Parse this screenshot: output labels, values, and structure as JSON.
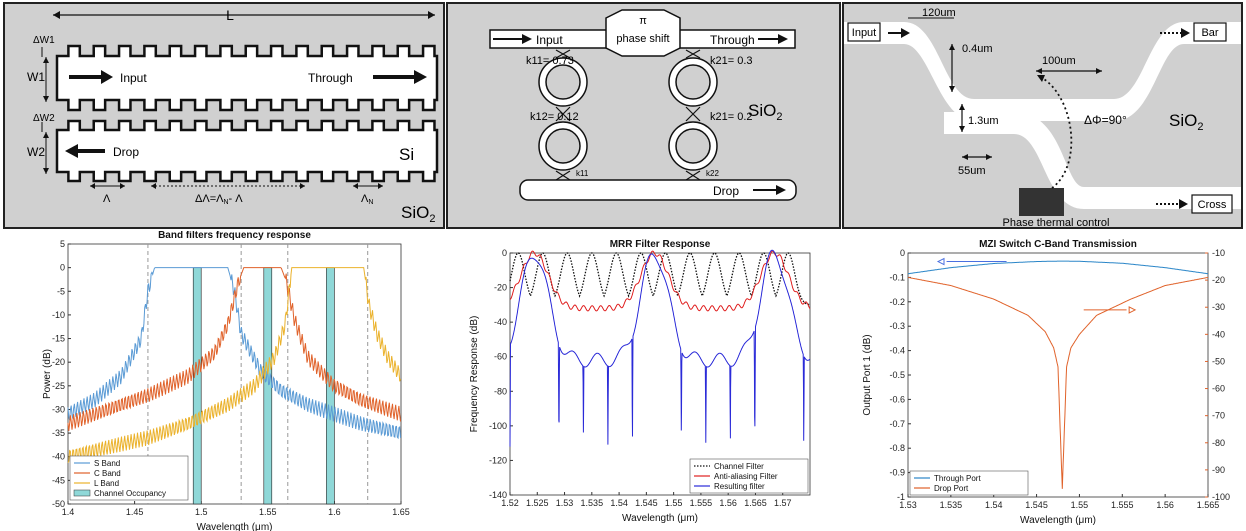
{
  "panel_a": {
    "length": "L",
    "dw1": "ΔW1",
    "w1": "W1",
    "dw2": "ΔW2",
    "w2": "W2",
    "input": "Input",
    "through": "Through",
    "drop": "Drop",
    "si": "Si",
    "lambda": "Λ",
    "dlambda": "ΔΛ=Λ",
    "dlambda_sub": "N",
    "dlambda_rest": "- Λ",
    "lambda_n": "Λ",
    "lambda_n_sub": "N",
    "sio2": "SiO",
    "sio2_sub": "2"
  },
  "panel_b": {
    "pi": "π",
    "phase_shift": "phase shift",
    "input": "Input",
    "through": "Through",
    "drop": "Drop",
    "k11": "k11= 0.73",
    "k12": "k12= 0.12",
    "k21": "k21= 0.3",
    "k22": "k21= 0.2",
    "k_bottom_left": "k11",
    "k_bottom_right": "k22",
    "sio2": "SiO",
    "sio2_sub": "2"
  },
  "panel_c": {
    "input": "Input",
    "bar": "Bar",
    "cross": "Cross",
    "d120": "120um",
    "d04": "0.4um",
    "d100": "100um",
    "d13": "1.3um",
    "d55": "55um",
    "phase": "ΔΦ=90°",
    "thermal": "Phase thermal control",
    "sio2": "SiO",
    "sio2_sub": "2"
  },
  "chart_data": [
    {
      "type": "line",
      "title": "Band filters frequency response",
      "xlabel": "Wavelength (μm)",
      "ylabel": "Power (dB)",
      "xlim": [
        1.4,
        1.65
      ],
      "ylim": [
        -50,
        5
      ],
      "xticks": [
        "1.4",
        "1.45",
        "1.5",
        "1.55",
        "1.6",
        "1.65"
      ],
      "yticks": [
        "5",
        "0",
        "-5",
        "-10",
        "-15",
        "-20",
        "-25",
        "-30",
        "-35",
        "-40",
        "-45",
        "-50"
      ],
      "legend": [
        "S Band",
        "C Band",
        "L Band",
        "Channel Occupancy"
      ],
      "legend_position": "bottom-left",
      "series": [
        {
          "name": "S Band",
          "color": "#5b9bd5",
          "x": [
            1.4,
            1.42,
            1.44,
            1.455,
            1.46,
            1.465,
            1.52,
            1.525,
            1.53,
            1.545,
            1.56,
            1.58,
            1.6,
            1.62,
            1.65
          ],
          "y": [
            -31,
            -28,
            -23,
            -15,
            -5,
            0,
            0,
            -5,
            -14,
            -22,
            -26,
            -29,
            -31,
            -33,
            -35
          ]
        },
        {
          "name": "C Band",
          "color": "#e0622a",
          "x": [
            1.4,
            1.43,
            1.46,
            1.49,
            1.51,
            1.52,
            1.528,
            1.532,
            1.56,
            1.564,
            1.57,
            1.58,
            1.6,
            1.62,
            1.65
          ],
          "y": [
            -33,
            -30,
            -27,
            -23,
            -18,
            -12,
            -3,
            0,
            0,
            -3,
            -11,
            -19,
            -25,
            -28,
            -31
          ]
        },
        {
          "name": "L Band",
          "color": "#ebb22c",
          "x": [
            1.4,
            1.43,
            1.46,
            1.49,
            1.52,
            1.54,
            1.555,
            1.563,
            1.568,
            1.622,
            1.626,
            1.632,
            1.64,
            1.65
          ],
          "y": [
            -40,
            -38,
            -36,
            -33,
            -29,
            -25,
            -19,
            -12,
            0,
            0,
            -8,
            -14,
            -19,
            -23
          ]
        }
      ],
      "dashed_lines_x": [
        1.46,
        1.53,
        1.565,
        1.625
      ],
      "channel_occupancy": [
        [
          1.494,
          1.5
        ],
        [
          1.547,
          1.553
        ],
        [
          1.594,
          1.6
        ]
      ]
    },
    {
      "type": "line",
      "title": "MRR Filter Response",
      "xlabel": "Wavelength (μm)",
      "ylabel": "Frequency Response (dB)",
      "xlim": [
        1.52,
        1.575
      ],
      "ylim": [
        -140,
        0
      ],
      "xticks": [
        "1.52",
        "1.525",
        "1.53",
        "1.535",
        "1.54",
        "1.545",
        "1.55",
        "1.555",
        "1.56",
        "1.565",
        "1.57"
      ],
      "yticks": [
        "0",
        "-20",
        "-40",
        "-60",
        "-80",
        "-100",
        "-120",
        "-140"
      ],
      "legend": [
        "Channel Filter",
        "Anti-aliasing Filter",
        "Resulting filter"
      ],
      "legend_position": "bottom-right",
      "series": [
        {
          "name": "Channel Filter",
          "color": "#111111",
          "style": "dotted",
          "peaks_x": [
            1.5215,
            1.526,
            1.5305,
            1.535,
            1.5395,
            1.544,
            1.5485,
            1.553,
            1.5575,
            1.562,
            1.5665,
            1.571
          ],
          "floor": -30
        },
        {
          "name": "Anti-aliasing Filter",
          "color": "#e02020",
          "peaks_x": [
            1.5245,
            1.5465,
            1.5685
          ],
          "floor": -32
        },
        {
          "name": "Resulting filter",
          "color": "#2a2ad8",
          "peaks_x": [
            1.5245,
            1.5465,
            1.5685
          ],
          "floor": -62
        }
      ]
    },
    {
      "type": "line",
      "title": "MZI Switch C-Band Transmission",
      "xlabel": "Wavelength (μm)",
      "ylabel": "Output Port 1 (dB)",
      "y2label": "",
      "xlim": [
        1.53,
        1.565
      ],
      "ylim": [
        -1,
        0
      ],
      "y2lim": [
        -100,
        -10
      ],
      "xticks": [
        "1.53",
        "1.535",
        "1.54",
        "1.545",
        "1.55",
        "1.555",
        "1.56",
        "1.565"
      ],
      "yticks": [
        "0",
        "-0.1",
        "-0.2",
        "-0.3",
        "-0.4",
        "-0.5",
        "-0.6",
        "-0.7",
        "-0.8",
        "-0.9",
        "-1"
      ],
      "y2ticks": [
        "-10",
        "-20",
        "-30",
        "-40",
        "-50",
        "-60",
        "-70",
        "-80",
        "-90",
        "-100"
      ],
      "legend": [
        "Through Port",
        "Drop Port"
      ],
      "legend_position": "bottom-left",
      "series": [
        {
          "name": "Through Port",
          "color": "#2b86c8",
          "x": [
            1.53,
            1.535,
            1.54,
            1.545,
            1.548,
            1.55,
            1.555,
            1.56,
            1.565
          ],
          "y": [
            -0.085,
            -0.06,
            -0.043,
            -0.035,
            -0.033,
            -0.034,
            -0.042,
            -0.06,
            -0.085
          ],
          "axis": "left"
        },
        {
          "name": "Drop Port",
          "color": "#e0622a",
          "x": [
            1.53,
            1.535,
            1.54,
            1.544,
            1.546,
            1.547,
            1.5475,
            1.548,
            1.5485,
            1.549,
            1.55,
            1.552,
            1.556,
            1.56,
            1.565
          ],
          "y": [
            -19,
            -22,
            -27,
            -33,
            -39,
            -45,
            -52,
            -97,
            -52,
            -45,
            -40,
            -33,
            -27,
            -22,
            -19
          ],
          "axis": "right"
        }
      ]
    }
  ]
}
